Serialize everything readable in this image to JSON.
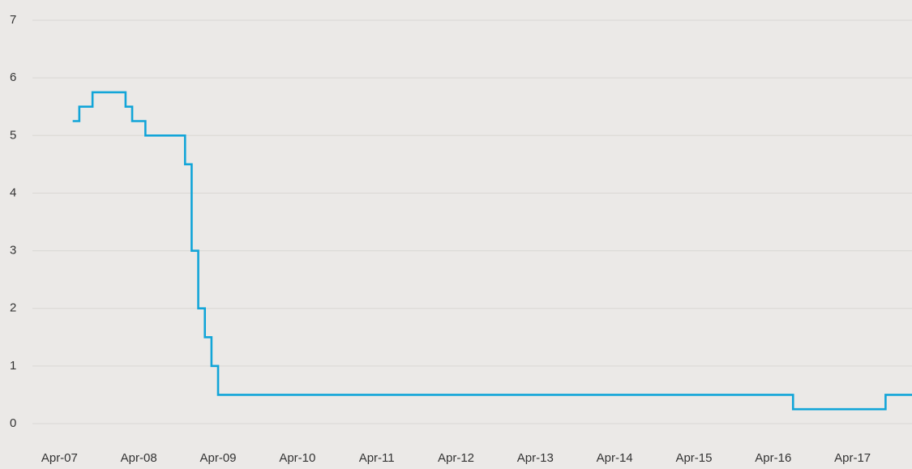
{
  "chart_data": {
    "type": "step",
    "x": [
      "2007-06",
      "2007-07",
      "2007-09",
      "2008-02",
      "2008-03",
      "2008-05",
      "2008-11",
      "2008-12",
      "2009-01",
      "2009-02",
      "2009-03",
      "2009-04",
      "2016-07",
      "2017-09",
      "2018-01"
    ],
    "series": [
      {
        "color": "#12a5d8",
        "values": [
          5.25,
          5.5,
          5.75,
          5.5,
          5.25,
          5.0,
          4.5,
          3,
          2,
          1.5,
          1,
          0.5,
          0.25,
          0.5,
          0.5
        ]
      }
    ],
    "xlim": [
      "2006-07",
      "2018-01"
    ],
    "xticks": [
      {
        "value": "2007-04",
        "label": "Apr-07"
      },
      {
        "value": "2008-04",
        "label": "Apr-08"
      },
      {
        "value": "2009-04",
        "label": "Apr-09"
      },
      {
        "value": "2010-04",
        "label": "Apr-10"
      },
      {
        "value": "2011-04",
        "label": "Apr-11"
      },
      {
        "value": "2012-04",
        "label": "Apr-12"
      },
      {
        "value": "2013-04",
        "label": "Apr-13"
      },
      {
        "value": "2014-04",
        "label": "Apr-14"
      },
      {
        "value": "2015-04",
        "label": "Apr-15"
      },
      {
        "value": "2016-04",
        "label": "Apr-16"
      },
      {
        "value": "2017-04",
        "label": "Apr-17"
      }
    ],
    "ylim": [
      0,
      7
    ],
    "yticks": [
      0,
      1,
      2,
      3,
      4,
      5,
      6,
      7
    ],
    "grid": true
  }
}
